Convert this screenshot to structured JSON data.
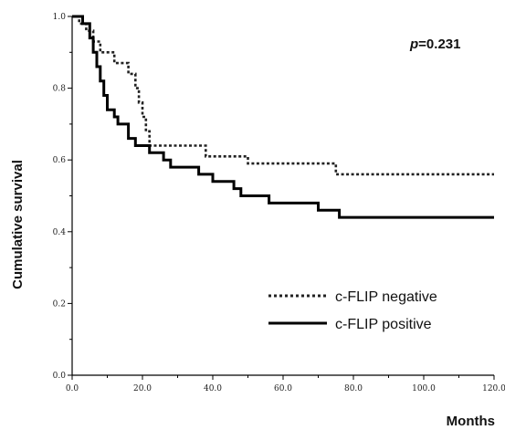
{
  "chart_data": {
    "type": "line",
    "xlabel": "Months",
    "ylabel": "Cumulative survival",
    "xlim": [
      0,
      120
    ],
    "ylim": [
      0,
      1.0
    ],
    "x_ticks": [
      "0.0",
      "20.0",
      "40.0",
      "60.0",
      "80.0",
      "100.0",
      "120.0"
    ],
    "y_ticks": [
      "0.0",
      "0.2",
      "0.4",
      "0.6",
      "0.8",
      "1.0"
    ],
    "annotation": {
      "p_symbol": "p",
      "p_text": "=0.231"
    },
    "grid": false,
    "legend_position": "bottom-right",
    "series": [
      {
        "name": "c-FLIP negative",
        "line_style": "dotted",
        "color": "#222222",
        "points": [
          [
            0,
            1.0
          ],
          [
            2,
            1.0
          ],
          [
            2,
            0.98
          ],
          [
            4,
            0.98
          ],
          [
            4,
            0.96
          ],
          [
            6,
            0.96
          ],
          [
            6,
            0.93
          ],
          [
            8,
            0.93
          ],
          [
            8,
            0.9
          ],
          [
            12,
            0.9
          ],
          [
            12,
            0.87
          ],
          [
            16,
            0.87
          ],
          [
            16,
            0.84
          ],
          [
            18,
            0.84
          ],
          [
            18,
            0.8
          ],
          [
            19,
            0.8
          ],
          [
            19,
            0.76
          ],
          [
            20,
            0.76
          ],
          [
            20,
            0.72
          ],
          [
            21,
            0.72
          ],
          [
            21,
            0.68
          ],
          [
            22,
            0.68
          ],
          [
            22,
            0.64
          ],
          [
            38,
            0.64
          ],
          [
            38,
            0.61
          ],
          [
            50,
            0.61
          ],
          [
            50,
            0.59
          ],
          [
            75,
            0.59
          ],
          [
            75,
            0.56
          ],
          [
            120,
            0.56
          ]
        ]
      },
      {
        "name": "c-FLIP positive",
        "line_style": "solid",
        "color": "#000000",
        "points": [
          [
            0,
            1.0
          ],
          [
            3,
            1.0
          ],
          [
            3,
            0.98
          ],
          [
            5,
            0.98
          ],
          [
            5,
            0.94
          ],
          [
            6,
            0.94
          ],
          [
            6,
            0.9
          ],
          [
            7,
            0.9
          ],
          [
            7,
            0.86
          ],
          [
            8,
            0.86
          ],
          [
            8,
            0.82
          ],
          [
            9,
            0.82
          ],
          [
            9,
            0.78
          ],
          [
            10,
            0.78
          ],
          [
            10,
            0.74
          ],
          [
            12,
            0.74
          ],
          [
            12,
            0.72
          ],
          [
            13,
            0.72
          ],
          [
            13,
            0.7
          ],
          [
            16,
            0.7
          ],
          [
            16,
            0.66
          ],
          [
            18,
            0.66
          ],
          [
            18,
            0.64
          ],
          [
            22,
            0.64
          ],
          [
            22,
            0.62
          ],
          [
            26,
            0.62
          ],
          [
            26,
            0.6
          ],
          [
            28,
            0.6
          ],
          [
            28,
            0.58
          ],
          [
            36,
            0.58
          ],
          [
            36,
            0.56
          ],
          [
            40,
            0.56
          ],
          [
            40,
            0.54
          ],
          [
            46,
            0.54
          ],
          [
            46,
            0.52
          ],
          [
            48,
            0.52
          ],
          [
            48,
            0.5
          ],
          [
            56,
            0.5
          ],
          [
            56,
            0.48
          ],
          [
            70,
            0.48
          ],
          [
            70,
            0.46
          ],
          [
            76,
            0.46
          ],
          [
            76,
            0.44
          ],
          [
            120,
            0.44
          ]
        ]
      }
    ]
  }
}
